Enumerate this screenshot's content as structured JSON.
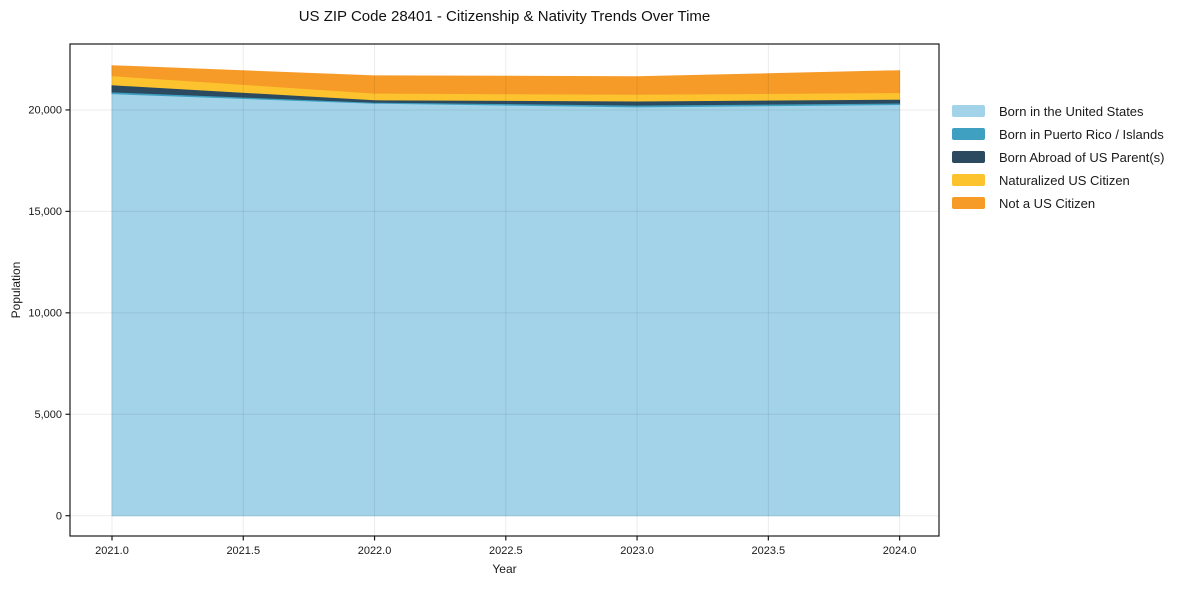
{
  "title": "US ZIP Code 28401 - Citizenship & Nativity Trends Over Time",
  "chart_data": {
    "type": "area",
    "stacked": true,
    "title": "US ZIP Code 28401 - Citizenship & Nativity Trends Over Time",
    "xlabel": "Year",
    "ylabel": "Population",
    "x": [
      2021,
      2022,
      2023,
      2024
    ],
    "series": [
      {
        "name": "Born in the United States",
        "color": "#a3d3e8",
        "values": [
          20800,
          20330,
          20150,
          20270
        ]
      },
      {
        "name": "Born in Puerto Rico / Islands",
        "color": "#3fa0c1",
        "values": [
          90,
          50,
          90,
          70
        ]
      },
      {
        "name": "Born Abroad of US Parent(s)",
        "color": "#2b4a5f",
        "values": [
          350,
          120,
          200,
          190
        ]
      },
      {
        "name": "Naturalized US Citizen",
        "color": "#fcc32f",
        "values": [
          450,
          330,
          330,
          325
        ]
      },
      {
        "name": "Not a US Citizen",
        "color": "#f79b28",
        "values": [
          490,
          850,
          870,
          1080
        ]
      }
    ],
    "xlim": [
      2020.84,
      2024.15
    ],
    "ylim": [
      -1000,
      23250
    ],
    "xticks": {
      "values": [
        2021.0,
        2021.5,
        2022.0,
        2022.5,
        2023.0,
        2023.5,
        2024.0
      ],
      "labels": [
        "2021.0",
        "2021.5",
        "2022.0",
        "2022.5",
        "2023.0",
        "2023.5",
        "2024.0"
      ]
    },
    "yticks": {
      "values": [
        0,
        5000,
        10000,
        15000,
        20000
      ],
      "labels": [
        "0",
        "5,000",
        "10,000",
        "15,000",
        "20,000"
      ]
    },
    "grid": true,
    "legend_position": "right",
    "spine_color": "#1a1a1a",
    "grid_color": "rgba(0,0,0,0.08)",
    "tick_label_color": "#1a1a1a"
  }
}
